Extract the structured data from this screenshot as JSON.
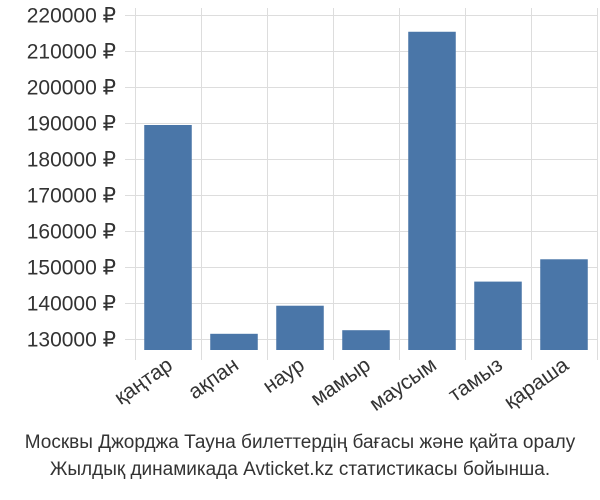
{
  "chart_data": {
    "type": "bar",
    "categories": [
      "қаңтар",
      "ақпан",
      "наур",
      "мамыр",
      "маусым",
      "тамыз",
      "қараша"
    ],
    "values": [
      189500,
      131500,
      139300,
      132500,
      215400,
      146000,
      152200
    ],
    "ylim": [
      127000,
      222000
    ],
    "yticks": [
      130000,
      140000,
      150000,
      160000,
      170000,
      180000,
      190000,
      200000,
      210000,
      220000
    ],
    "ytick_labels": [
      "130000 ₽",
      "140000 ₽",
      "150000 ₽",
      "160000 ₽",
      "170000 ₽",
      "180000 ₽",
      "190000 ₽",
      "200000 ₽",
      "210000 ₽",
      "220000 ₽"
    ],
    "bar_color": "#4a76a8",
    "grid": true
  },
  "caption": {
    "line1": "Москвы Джорджа Тауна билеттердің бағасы және қайта оралу",
    "line2": "Жылдық динамикада Avticket.kz статистикасы бойынша."
  }
}
